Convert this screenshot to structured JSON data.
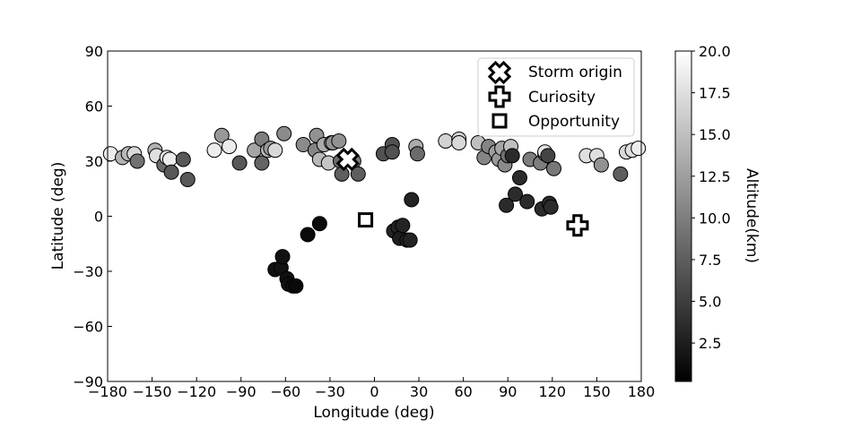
{
  "chart_data": {
    "type": "scatter",
    "title": "",
    "xlabel": "Longitude (deg)",
    "ylabel": "Latitude (deg)",
    "xlim": [
      -180,
      180
    ],
    "ylim": [
      -90,
      90
    ],
    "xticks": [
      -180,
      -150,
      -120,
      -90,
      -60,
      -30,
      0,
      30,
      60,
      90,
      120,
      150,
      180
    ],
    "yticks": [
      -90,
      -60,
      -30,
      0,
      30,
      60,
      90
    ],
    "xtick_labels": [
      "−180",
      "−150",
      "−120",
      "−90",
      "−60",
      "−30",
      "0",
      "30",
      "60",
      "90",
      "120",
      "150",
      "180"
    ],
    "ytick_labels": [
      "−90",
      "−60",
      "−30",
      "0",
      "30",
      "60",
      "90"
    ],
    "grid": false,
    "colorbar": {
      "label": "Altitude(km)",
      "range": [
        0.2,
        20.0
      ],
      "ticks": [
        2.5,
        5.0,
        7.5,
        10.0,
        12.5,
        15.0,
        17.5,
        20.0
      ],
      "tick_labels": [
        "2.5",
        "5.0",
        "7.5",
        "10.0",
        "12.5",
        "15.0",
        "17.5",
        "20.0"
      ],
      "colormap": "gray (black low, white high)"
    },
    "legend": {
      "position": "top-right",
      "entries": [
        {
          "label": "Storm origin",
          "marker": "x-cross"
        },
        {
          "label": "Curiosity",
          "marker": "plus"
        },
        {
          "label": "Opportunity",
          "marker": "square"
        }
      ]
    },
    "markers": [
      {
        "name": "Storm origin",
        "x": -18,
        "y": 31
      },
      {
        "name": "Curiosity",
        "x": 137,
        "y": -5
      },
      {
        "name": "Opportunity",
        "x": -6,
        "y": -2
      }
    ],
    "points": [
      {
        "x": -178,
        "y": 34,
        "alt": 18.5
      },
      {
        "x": -170,
        "y": 32,
        "alt": 14.0
      },
      {
        "x": -166,
        "y": 34,
        "alt": 14.5
      },
      {
        "x": -162,
        "y": 34,
        "alt": 17.0
      },
      {
        "x": -160,
        "y": 30,
        "alt": 9.0
      },
      {
        "x": -148,
        "y": 36,
        "alt": 14.0
      },
      {
        "x": -147,
        "y": 33,
        "alt": 17.5
      },
      {
        "x": -142,
        "y": 28,
        "alt": 8.5
      },
      {
        "x": -140,
        "y": 32,
        "alt": 17.5
      },
      {
        "x": -138,
        "y": 31,
        "alt": 18.5
      },
      {
        "x": -137,
        "y": 24,
        "alt": 7.0
      },
      {
        "x": -129,
        "y": 31,
        "alt": 7.0
      },
      {
        "x": -126,
        "y": 20,
        "alt": 7.0
      },
      {
        "x": -108,
        "y": 36,
        "alt": 18.5
      },
      {
        "x": -103,
        "y": 44,
        "alt": 12.0
      },
      {
        "x": -98,
        "y": 38,
        "alt": 18.5
      },
      {
        "x": -91,
        "y": 29,
        "alt": 7.0
      },
      {
        "x": -81,
        "y": 36,
        "alt": 13.0
      },
      {
        "x": -76,
        "y": 42,
        "alt": 10.0
      },
      {
        "x": -76,
        "y": 29,
        "alt": 8.0
      },
      {
        "x": -72,
        "y": 36,
        "alt": 14.5
      },
      {
        "x": -70,
        "y": 37,
        "alt": 12.0
      },
      {
        "x": -67,
        "y": 36,
        "alt": 17.0
      },
      {
        "x": -67,
        "y": -29,
        "alt": 1.5
      },
      {
        "x": -63,
        "y": -28,
        "alt": 1.5
      },
      {
        "x": -62,
        "y": -22,
        "alt": 1.5
      },
      {
        "x": -61,
        "y": 45,
        "alt": 11.0
      },
      {
        "x": -59,
        "y": -34,
        "alt": 1.5
      },
      {
        "x": -58,
        "y": -37,
        "alt": 1.5
      },
      {
        "x": -55,
        "y": -38,
        "alt": 1.5
      },
      {
        "x": -53,
        "y": -38,
        "alt": 1.0
      },
      {
        "x": -48,
        "y": 39,
        "alt": 11.0
      },
      {
        "x": -45,
        "y": -10,
        "alt": 1.0
      },
      {
        "x": -40,
        "y": 36,
        "alt": 10.5
      },
      {
        "x": -39,
        "y": 44,
        "alt": 11.5
      },
      {
        "x": -37,
        "y": 31,
        "alt": 14.5
      },
      {
        "x": -37,
        "y": -4,
        "alt": 1.0
      },
      {
        "x": -34,
        "y": 39,
        "alt": 13.5
      },
      {
        "x": -31,
        "y": 29,
        "alt": 15.5
      },
      {
        "x": -29,
        "y": 40,
        "alt": 13.0
      },
      {
        "x": -28,
        "y": 40,
        "alt": 11.5
      },
      {
        "x": -24,
        "y": 41,
        "alt": 11.5
      },
      {
        "x": -23,
        "y": 30,
        "alt": 8.5
      },
      {
        "x": -22,
        "y": 23,
        "alt": 7.5
      },
      {
        "x": -14,
        "y": 30,
        "alt": 10.0
      },
      {
        "x": -11,
        "y": 23,
        "alt": 7.5
      },
      {
        "x": 6,
        "y": 34,
        "alt": 6.5
      },
      {
        "x": 12,
        "y": 39,
        "alt": 6.5
      },
      {
        "x": 12,
        "y": 35,
        "alt": 6.5
      },
      {
        "x": 13,
        "y": -8,
        "alt": 3.0
      },
      {
        "x": 16,
        "y": -6,
        "alt": 3.0
      },
      {
        "x": 17,
        "y": -12,
        "alt": 2.5
      },
      {
        "x": 19,
        "y": -5,
        "alt": 3.0
      },
      {
        "x": 22,
        "y": -13,
        "alt": 3.0
      },
      {
        "x": 24,
        "y": -13,
        "alt": 3.0
      },
      {
        "x": 25,
        "y": 9,
        "alt": 3.0
      },
      {
        "x": 28,
        "y": 38,
        "alt": 13.5
      },
      {
        "x": 29,
        "y": 34,
        "alt": 8.5
      },
      {
        "x": 48,
        "y": 41,
        "alt": 16.5
      },
      {
        "x": 57,
        "y": 42,
        "alt": 16.5
      },
      {
        "x": 57,
        "y": 40,
        "alt": 17.0
      },
      {
        "x": 70,
        "y": 40,
        "alt": 15.0
      },
      {
        "x": 74,
        "y": 32,
        "alt": 10.5
      },
      {
        "x": 77,
        "y": 38,
        "alt": 10.5
      },
      {
        "x": 82,
        "y": 35,
        "alt": 12.5
      },
      {
        "x": 84,
        "y": 31,
        "alt": 12.0
      },
      {
        "x": 86,
        "y": 37,
        "alt": 13.0
      },
      {
        "x": 88,
        "y": 28,
        "alt": 11.0
      },
      {
        "x": 89,
        "y": 6,
        "alt": 3.5
      },
      {
        "x": 90,
        "y": 33,
        "alt": 9.0
      },
      {
        "x": 92,
        "y": 38,
        "alt": 15.0
      },
      {
        "x": 93,
        "y": 33,
        "alt": 3.5
      },
      {
        "x": 95,
        "y": 12,
        "alt": 3.5
      },
      {
        "x": 98,
        "y": 21,
        "alt": 3.5
      },
      {
        "x": 103,
        "y": 8,
        "alt": 3.5
      },
      {
        "x": 105,
        "y": 31,
        "alt": 10.0
      },
      {
        "x": 112,
        "y": 29,
        "alt": 10.0
      },
      {
        "x": 113,
        "y": 4,
        "alt": 3.5
      },
      {
        "x": 115,
        "y": 34,
        "alt": 15.5
      },
      {
        "x": 115,
        "y": 35,
        "alt": 18.0
      },
      {
        "x": 117,
        "y": 33,
        "alt": 5.5
      },
      {
        "x": 118,
        "y": 7,
        "alt": 3.5
      },
      {
        "x": 119,
        "y": 5,
        "alt": 3.5
      },
      {
        "x": 121,
        "y": 26,
        "alt": 9.5
      },
      {
        "x": 143,
        "y": 33,
        "alt": 17.5
      },
      {
        "x": 150,
        "y": 33,
        "alt": 17.5
      },
      {
        "x": 153,
        "y": 28,
        "alt": 11.5
      },
      {
        "x": 166,
        "y": 23,
        "alt": 7.5
      },
      {
        "x": 170,
        "y": 35,
        "alt": 17.0
      },
      {
        "x": 174,
        "y": 36,
        "alt": 17.5
      },
      {
        "x": 178,
        "y": 37,
        "alt": 18.5
      }
    ]
  }
}
